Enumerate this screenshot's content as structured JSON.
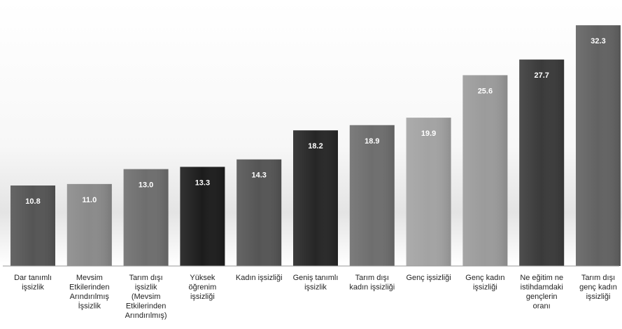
{
  "chart_data": {
    "type": "bar",
    "title": "",
    "xlabel": "",
    "ylabel": "",
    "ylim": [
      0,
      34
    ],
    "grid": false,
    "legend": "none",
    "categories": [
      [
        "Dar tanımlı",
        "işsizlik"
      ],
      [
        "Mevsim",
        "Etkilerinden",
        "Arındırılmış",
        "İşsizlik"
      ],
      [
        "Tarım dışı",
        "işsizlik",
        "(Mevsim",
        "Etkilerinden",
        "Arındırılmış)"
      ],
      [
        "Yüksek",
        "öğrenim",
        "işsizliği"
      ],
      [
        "Kadın işsizliği"
      ],
      [
        "Geniş tanımlı",
        "işsizlik"
      ],
      [
        "Tarım dışı",
        "kadın işsizliği"
      ],
      [
        "Genç işsizliği"
      ],
      [
        "Genç kadın",
        "işsizliği"
      ],
      [
        "Ne eğitim ne",
        "istihdamdaki",
        "gençlerin",
        "oranı"
      ],
      [
        "Tarım dışı",
        "genç kadın",
        "işsizliği"
      ]
    ],
    "values": [
      10.8,
      11.0,
      13.0,
      13.3,
      14.3,
      18.2,
      18.9,
      19.9,
      25.6,
      27.7,
      32.3
    ],
    "value_labels": [
      "10.8",
      "11.0",
      "13.0",
      "13.3",
      "14.3",
      "18.2",
      "18.9",
      "19.9",
      "25.6",
      "27.7",
      "32.3"
    ],
    "colors": {
      "bar_fills": [
        "#555555",
        "#8a8a8a",
        "#6e6e6e",
        "#1c1c1c",
        "#555555",
        "#262626",
        "#6e6e6e",
        "#a3a3a3",
        "#9b9b9b",
        "#3a3a3a",
        "#626262"
      ],
      "value_text": "#ffffff",
      "label_text": "#222222",
      "baseline": "#9a9a9a"
    }
  }
}
